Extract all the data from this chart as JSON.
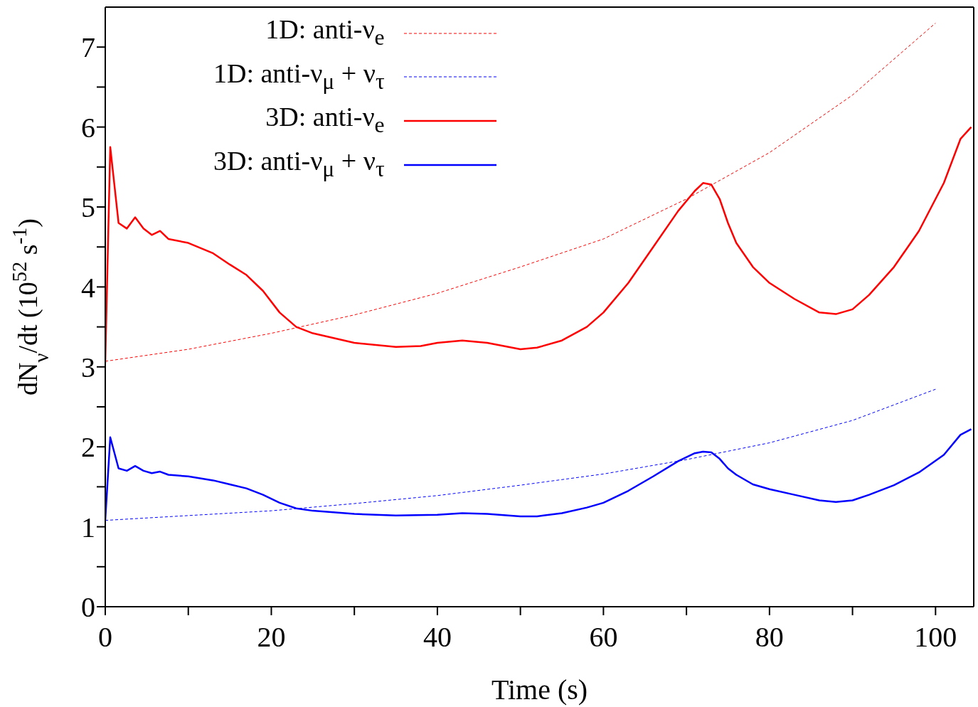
{
  "chart_data": {
    "type": "line",
    "xlabel": "Time (s)",
    "ylabel": "dN$_{ν}$/dt (10$^{52}$ s$^{-1}$)",
    "xlim": [
      0,
      104.6
    ],
    "ylim": [
      0,
      7.5
    ],
    "xticks": [
      0,
      {
        "value": 10,
        "label": null
      },
      20,
      {
        "value": 30,
        "label": null
      },
      40,
      {
        "value": 50,
        "label": null
      },
      60,
      {
        "value": 70,
        "label": null
      },
      80,
      {
        "value": 90,
        "label": null
      },
      100
    ],
    "yticks": [
      0,
      {
        "value": 0.5,
        "label": null
      },
      1,
      {
        "value": 1.5,
        "label": null
      },
      2,
      {
        "value": 2.5,
        "label": null
      },
      3,
      {
        "value": 3.5,
        "label": null
      },
      4,
      {
        "value": 4.5,
        "label": null
      },
      5,
      {
        "value": 5.5,
        "label": null
      },
      6,
      {
        "value": 6.5,
        "label": null
      },
      7
    ],
    "grid": false,
    "legend": "top left",
    "marker": "none",
    "series": [
      {
        "name": "1D: anti-ν$_{e}$",
        "color": "#ff0000",
        "line_style": "dashed",
        "x": [
          0,
          10,
          20,
          30,
          40,
          50,
          60,
          70,
          80,
          90,
          100
        ],
        "values": [
          3.07,
          3.22,
          3.42,
          3.65,
          3.92,
          4.25,
          4.6,
          5.1,
          5.68,
          6.4,
          7.3
        ]
      },
      {
        "name": "1D: anti-ν$_{μ}$ + ν$_{τ}$",
        "color": "#0000ff",
        "line_style": "dashed",
        "x": [
          0,
          10,
          20,
          30,
          40,
          50,
          60,
          70,
          80,
          90,
          100
        ],
        "values": [
          1.08,
          1.14,
          1.2,
          1.29,
          1.39,
          1.52,
          1.66,
          1.84,
          2.05,
          2.33,
          2.72
        ]
      },
      {
        "name": "3D: anti-ν$_{e}$",
        "color": "#ff0000",
        "line_style": "solid",
        "x": [
          0,
          0.6,
          1.6,
          2.6,
          3.6,
          4.6,
          5.6,
          6.6,
          7.6,
          10,
          13,
          15,
          17,
          19,
          21,
          23,
          25,
          30,
          35,
          38,
          40,
          43,
          46,
          50,
          52,
          55,
          58,
          60,
          63,
          66,
          69,
          71,
          72,
          73,
          74,
          75,
          76,
          78,
          80,
          83,
          86,
          88,
          90,
          92,
          95,
          98,
          101,
          103,
          104.3
        ],
        "values": [
          3.05,
          5.75,
          4.8,
          4.73,
          4.87,
          4.73,
          4.65,
          4.7,
          4.6,
          4.55,
          4.42,
          4.28,
          4.15,
          3.95,
          3.68,
          3.5,
          3.42,
          3.3,
          3.25,
          3.26,
          3.3,
          3.33,
          3.3,
          3.22,
          3.24,
          3.33,
          3.5,
          3.68,
          4.05,
          4.5,
          4.95,
          5.2,
          5.3,
          5.28,
          5.1,
          4.8,
          4.55,
          4.25,
          4.05,
          3.85,
          3.68,
          3.66,
          3.72,
          3.9,
          4.25,
          4.7,
          5.3,
          5.85,
          6.0
        ]
      },
      {
        "name": "3D: anti-ν$_{μ}$ + ν$_{τ}$",
        "color": "#0000ff",
        "line_style": "solid",
        "x": [
          0,
          0.6,
          1.6,
          2.6,
          3.6,
          4.6,
          5.6,
          6.6,
          7.6,
          10,
          13,
          15,
          17,
          19,
          21,
          23,
          25,
          30,
          35,
          40,
          43,
          46,
          50,
          52,
          55,
          58,
          60,
          63,
          66,
          69,
          71,
          72,
          73,
          74,
          75,
          76,
          78,
          80,
          83,
          86,
          88,
          90,
          92,
          95,
          98,
          101,
          103,
          104.3
        ],
        "values": [
          1.08,
          2.12,
          1.73,
          1.7,
          1.76,
          1.7,
          1.67,
          1.69,
          1.65,
          1.63,
          1.58,
          1.53,
          1.48,
          1.4,
          1.3,
          1.23,
          1.2,
          1.16,
          1.14,
          1.15,
          1.17,
          1.16,
          1.13,
          1.13,
          1.17,
          1.24,
          1.3,
          1.45,
          1.63,
          1.82,
          1.92,
          1.94,
          1.93,
          1.85,
          1.73,
          1.65,
          1.53,
          1.47,
          1.4,
          1.33,
          1.31,
          1.33,
          1.4,
          1.52,
          1.68,
          1.9,
          2.15,
          2.22
        ]
      }
    ]
  }
}
